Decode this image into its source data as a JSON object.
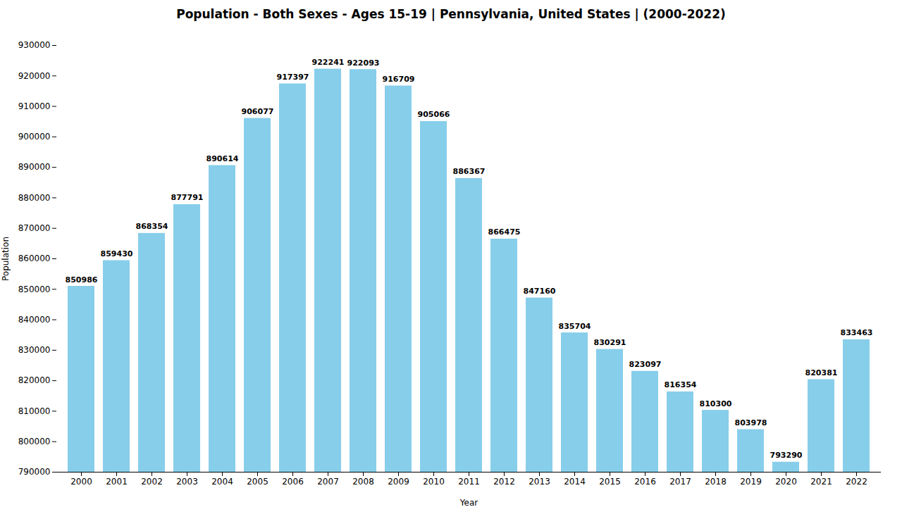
{
  "chart_data": {
    "type": "bar",
    "title": "Population - Both Sexes - Ages 15-19 | Pennsylvania, United States |  (2000-2022)",
    "xlabel": "Year",
    "ylabel": "Population",
    "categories": [
      "2000",
      "2001",
      "2002",
      "2003",
      "2004",
      "2005",
      "2006",
      "2007",
      "2008",
      "2009",
      "2010",
      "2011",
      "2012",
      "2013",
      "2014",
      "2015",
      "2016",
      "2017",
      "2018",
      "2019",
      "2020",
      "2021",
      "2022"
    ],
    "values": [
      850986,
      859430,
      868354,
      877791,
      890614,
      906077,
      917397,
      922241,
      922093,
      916709,
      905066,
      886367,
      866475,
      847160,
      835704,
      830291,
      823097,
      816354,
      810300,
      803978,
      793290,
      820381,
      833463
    ],
    "color": "#87CEEB",
    "ylim": [
      790000,
      930000
    ],
    "yticks": [
      790000,
      800000,
      810000,
      820000,
      830000,
      840000,
      850000,
      860000,
      870000,
      880000,
      890000,
      900000,
      910000,
      920000,
      930000
    ],
    "grid": false,
    "data_labels": true
  }
}
